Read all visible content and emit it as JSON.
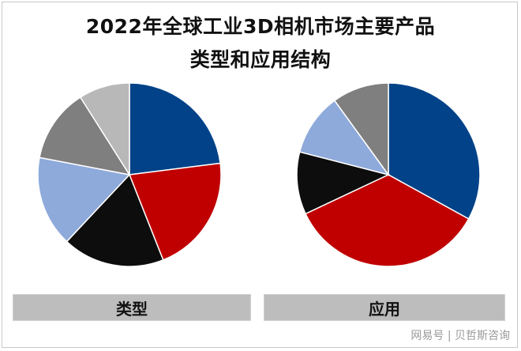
{
  "title_lines": [
    "2022年全球工业3D相机市场主要产品",
    "类型和应用结构"
  ],
  "source": "网易号 | 贝哲斯咨询",
  "chart_data": [
    {
      "type": "pie",
      "label": "类型",
      "slices": [
        {
          "value": 23,
          "color": "#014288"
        },
        {
          "value": 21,
          "color": "#c00000"
        },
        {
          "value": 18,
          "color": "#0d0d0d"
        },
        {
          "value": 16,
          "color": "#8eaadb"
        },
        {
          "value": 13,
          "color": "#7f7f7f"
        },
        {
          "value": 9,
          "color": "#b8b8b8"
        }
      ]
    },
    {
      "type": "pie",
      "label": "应用",
      "slices": [
        {
          "value": 33,
          "color": "#014288"
        },
        {
          "value": 35,
          "color": "#c00000"
        },
        {
          "value": 11,
          "color": "#0d0d0d"
        },
        {
          "value": 11,
          "color": "#8eaadb"
        },
        {
          "value": 10,
          "color": "#7f7f7f"
        }
      ]
    }
  ]
}
